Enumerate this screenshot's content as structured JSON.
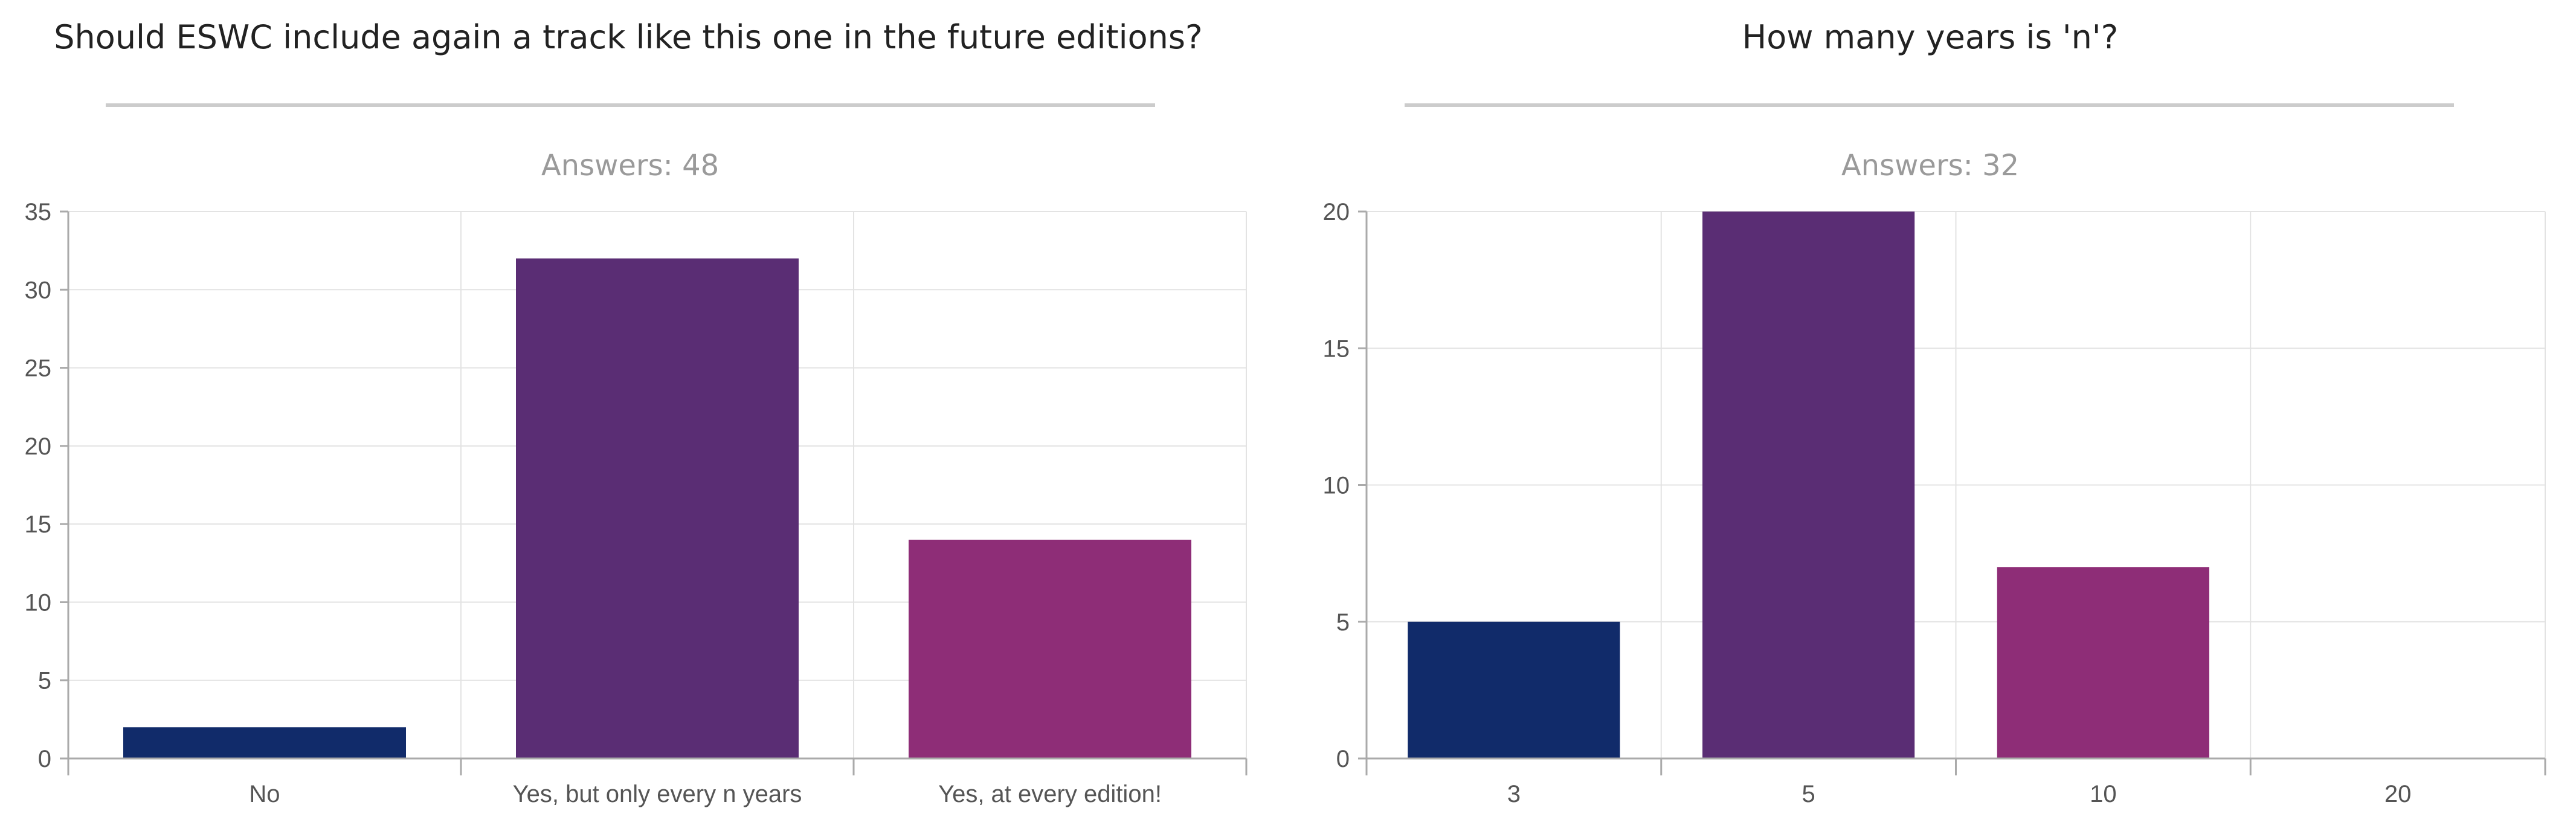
{
  "chart_data": [
    {
      "type": "bar",
      "title": "Should ESWC include again a track like this one in the future editions?",
      "subtitle": "Answers: 48",
      "categories": [
        "No",
        "Yes, but only every n years",
        "Yes, at every edition!"
      ],
      "values": [
        2,
        32,
        14
      ],
      "colors": [
        "#112b6a",
        "#5a2d74",
        "#8e2d77"
      ],
      "ylim": [
        0,
        35
      ],
      "yticks": [
        0,
        5,
        10,
        15,
        20,
        25,
        30,
        35
      ],
      "grid": true,
      "xlabel": "",
      "ylabel": ""
    },
    {
      "type": "bar",
      "title": "How many years is 'n'?",
      "subtitle": "Answers: 32",
      "categories": [
        "3",
        "5",
        "10",
        "20"
      ],
      "values": [
        5,
        20,
        7,
        0
      ],
      "colors": [
        "#112b6a",
        "#5a2d74",
        "#8e2d77",
        "#8e2d77"
      ],
      "ylim": [
        0,
        20
      ],
      "yticks": [
        0,
        5,
        10,
        15,
        20
      ],
      "grid": true,
      "xlabel": "",
      "ylabel": ""
    }
  ]
}
